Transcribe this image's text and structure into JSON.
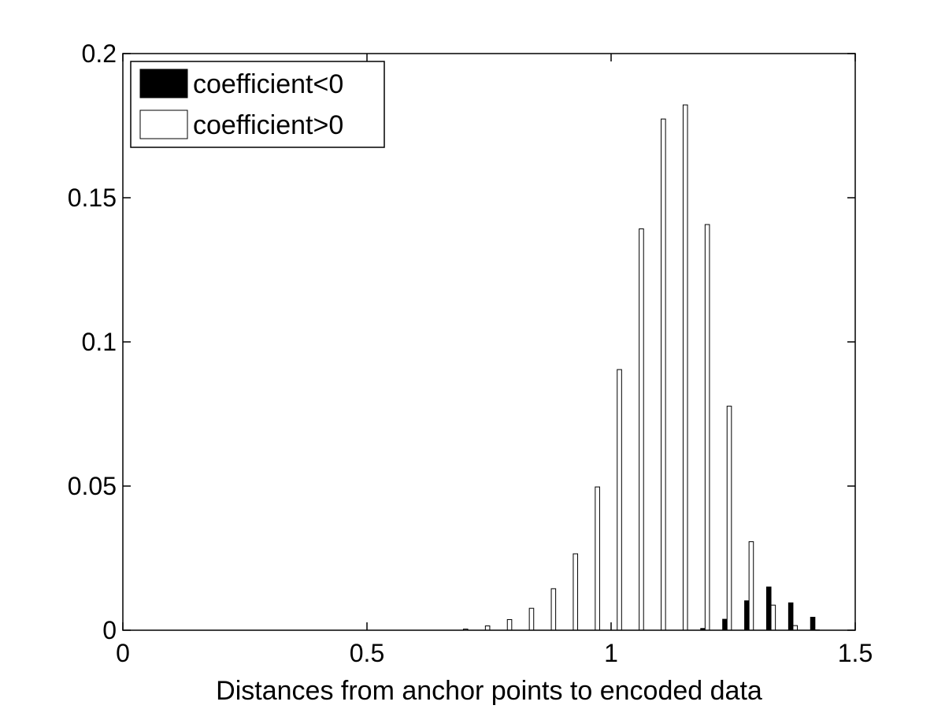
{
  "chart_data": {
    "type": "bar",
    "title": "",
    "xlabel": "Distances from anchor points to encoded data",
    "ylabel": "",
    "xlim": [
      0,
      1.5
    ],
    "ylim": [
      0,
      0.2
    ],
    "x_ticks": [
      "0",
      "0.5",
      "1",
      "1.5"
    ],
    "y_ticks": [
      "0",
      "0.05",
      "0.1",
      "0.15",
      "0.2"
    ],
    "grid": false,
    "legend_position": "top-left",
    "x": [
      0.0225,
      0.0675,
      0.1125,
      0.1575,
      0.2025,
      0.2475,
      0.2925,
      0.3375,
      0.3825,
      0.4275,
      0.4725,
      0.5175,
      0.5625,
      0.6075,
      0.6525,
      0.6975,
      0.7425,
      0.7875,
      0.8325,
      0.8775,
      0.9225,
      0.9675,
      1.0125,
      1.0575,
      1.1025,
      1.1475,
      1.1925,
      1.2375,
      1.2825,
      1.3275,
      1.3725,
      1.4175
    ],
    "series": [
      {
        "name": "coefficient<0",
        "color": "#000000",
        "values": [
          0,
          0,
          0,
          0,
          0,
          0,
          0,
          0,
          0,
          0,
          0,
          0,
          0,
          0,
          0,
          0,
          0,
          0,
          0,
          0,
          0,
          0,
          0,
          0,
          0,
          0,
          0.0006,
          0.0038,
          0.0102,
          0.015,
          0.0095,
          0.0045
        ]
      },
      {
        "name": "coefficient>0",
        "color": "#ffffff",
        "values": [
          0,
          0,
          0,
          0,
          0,
          0,
          0,
          0,
          0,
          0,
          0,
          0,
          0,
          0,
          0,
          0.0004,
          0.0015,
          0.0037,
          0.0076,
          0.0144,
          0.0265,
          0.0497,
          0.0904,
          0.1392,
          0.1773,
          0.1822,
          0.1407,
          0.0777,
          0.0307,
          0.0087,
          0.0016,
          0.0001
        ]
      }
    ]
  }
}
